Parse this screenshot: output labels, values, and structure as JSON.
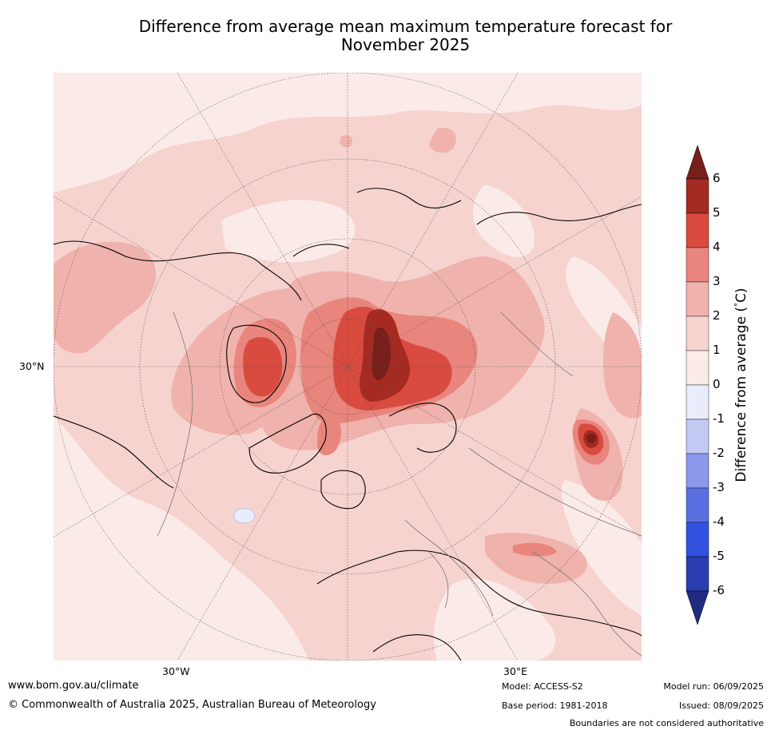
{
  "title_line1": "Difference from average mean maximum temperature forecast for",
  "title_line2": "November 2025",
  "map": {
    "projection": "north-polar-stereographic",
    "lat_label_30N": "30°N",
    "lon_label_30W": "30°W",
    "lon_label_30E": "30°E",
    "background_color": "#f6d3cf"
  },
  "colorbar": {
    "title": "Difference from average (",
    "title_degree": "°",
    "title_unit": "C)",
    "ticks": [
      "6",
      "5",
      "4",
      "3",
      "2",
      "1",
      "0",
      "-1",
      "-2",
      "-3",
      "-4",
      "-5",
      "-6"
    ],
    "colors_top_to_bottom": [
      "#a52a22",
      "#d94a3f",
      "#e8857c",
      "#f0b2ac",
      "#f6d3cf",
      "#fbebe8",
      "#e9ecfb",
      "#c2c9f2",
      "#8a99eb",
      "#5a70e2",
      "#3251df",
      "#2a3db0"
    ],
    "extend_max_color": "#771f1a",
    "extend_min_color": "#1f2b80"
  },
  "footer": {
    "website": "www.bom.gov.au/climate",
    "copyright": "© Commonwealth of Australia 2025, Australian Bureau of Meteorology",
    "model": "Model: ACCESS-S2",
    "base_period": "Base period: 1981-2018",
    "model_run": "Model run: 06/09/2025",
    "issued": "Issued: 08/09/2025",
    "disclaimer": "Boundaries are not considered authoritative"
  }
}
